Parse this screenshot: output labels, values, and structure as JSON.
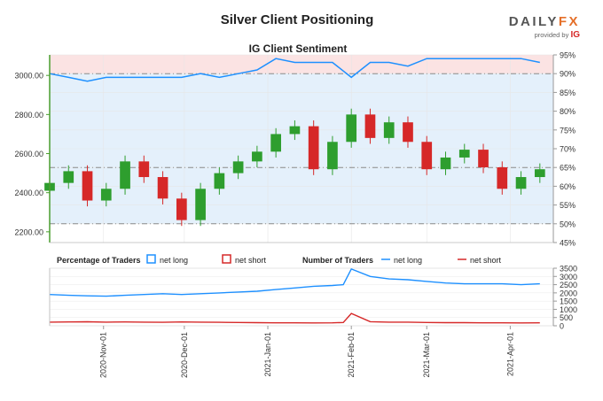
{
  "title": "Silver Client Positioning",
  "logo": {
    "brand_main": "DAILY",
    "brand_fx": "FX",
    "provided_by": "provided by",
    "provider": "IG"
  },
  "chart_data": [
    {
      "type": "candlestick+line",
      "subtitle": "IG Client Sentiment",
      "dates": [
        "2020-10-12",
        "2020-10-19",
        "2020-10-26",
        "2020-11-02",
        "2020-11-09",
        "2020-11-16",
        "2020-11-23",
        "2020-11-30",
        "2020-12-07",
        "2020-12-14",
        "2020-12-21",
        "2020-12-28",
        "2021-01-04",
        "2021-01-11",
        "2021-01-18",
        "2021-01-25",
        "2021-02-01",
        "2021-02-08",
        "2021-02-15",
        "2021-02-22",
        "2021-03-01",
        "2021-03-08",
        "2021-03-15",
        "2021-03-22",
        "2021-03-29",
        "2021-04-05",
        "2021-04-12"
      ],
      "price": [
        2450,
        2510,
        2360,
        2420,
        2560,
        2480,
        2370,
        2260,
        2420,
        2500,
        2560,
        2610,
        2700,
        2740,
        2520,
        2660,
        2800,
        2680,
        2760,
        2660,
        2520,
        2580,
        2620,
        2530,
        2420,
        2480,
        2520
      ],
      "percent_long": [
        90,
        89,
        88,
        89,
        89,
        89,
        89,
        89,
        90,
        89,
        90,
        91,
        94,
        93,
        93,
        93,
        89,
        93,
        93,
        92,
        94,
        94,
        94,
        94,
        94,
        94,
        93
      ],
      "left_axis_ticks": [
        "2200.00",
        "2400.00",
        "2600.00",
        "2800.00",
        "3000.00"
      ],
      "left_axis_range": [
        2145,
        3105
      ],
      "right_axis_ticks": [
        "45%",
        "50%",
        "55%",
        "60%",
        "65%",
        "70%",
        "75%",
        "80%",
        "85%",
        "90%",
        "95%"
      ],
      "right_axis_range": [
        45,
        95
      ],
      "reference_lines": [
        50,
        65,
        90
      ],
      "colors": {
        "up": "#2e9e2e",
        "down": "#d62828",
        "long": "#1e90ff",
        "short": "#d62828",
        "upper_zone": "#fbe3e3",
        "lower_zone": "#e4f0fb",
        "axis_green": "#4a9e2e"
      }
    },
    {
      "type": "line",
      "legend": {
        "pct_title": "Percentage of Traders",
        "pct_long": "net long",
        "pct_short": "net short",
        "num_title": "Number of Traders",
        "num_long": "net long",
        "num_short": "net short"
      },
      "dates": [
        "2020-10-12",
        "2020-10-19",
        "2020-10-26",
        "2020-11-02",
        "2020-11-09",
        "2020-11-16",
        "2020-11-23",
        "2020-11-30",
        "2020-12-07",
        "2020-12-14",
        "2020-12-21",
        "2020-12-28",
        "2021-01-04",
        "2021-01-11",
        "2021-01-18",
        "2021-01-25",
        "2021-01-29",
        "2021-02-01",
        "2021-02-08",
        "2021-02-15",
        "2021-02-22",
        "2021-03-01",
        "2021-03-08",
        "2021-03-15",
        "2021-03-22",
        "2021-03-29",
        "2021-04-05",
        "2021-04-12"
      ],
      "series": [
        {
          "name": "net long",
          "values": [
            1900,
            1850,
            1820,
            1800,
            1850,
            1900,
            1950,
            1900,
            1950,
            2000,
            2050,
            2100,
            2200,
            2300,
            2400,
            2450,
            2500,
            3450,
            3000,
            2850,
            2800,
            2700,
            2600,
            2550,
            2550,
            2550,
            2500,
            2550
          ]
        },
        {
          "name": "net short",
          "values": [
            220,
            230,
            240,
            220,
            230,
            220,
            210,
            230,
            220,
            210,
            200,
            190,
            180,
            180,
            170,
            180,
            200,
            750,
            250,
            220,
            220,
            200,
            190,
            190,
            180,
            180,
            170,
            180
          ]
        }
      ],
      "y_ticks": [
        "0",
        "500",
        "1000",
        "1500",
        "2000",
        "2500",
        "3000",
        "3500"
      ],
      "y_range": [
        0,
        3500
      ],
      "x_ticks": [
        "2020-Nov-01",
        "2020-Dec-01",
        "2021-Jan-01",
        "2021-Feb-01",
        "2021-Mar-01",
        "2021-Apr-01"
      ]
    }
  ]
}
